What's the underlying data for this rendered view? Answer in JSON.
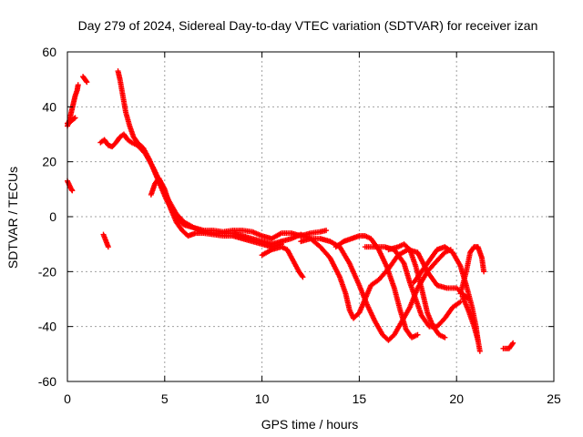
{
  "chart_data": {
    "type": "scatter",
    "title": "Day 279 of 2024, Sidereal Day-to-day VTEC variation (SDTVAR) for receiver izan",
    "xlabel": "GPS time / hours",
    "ylabel": "SDTVAR / TECUs",
    "xlim": [
      0,
      25
    ],
    "ylim": [
      -60,
      60
    ],
    "xticks": [
      0,
      5,
      10,
      15,
      20,
      25
    ],
    "yticks": [
      -60,
      -40,
      -20,
      0,
      20,
      40,
      60
    ],
    "grid": true,
    "marker": "+",
    "color": "#ff0000",
    "series": [
      {
        "name": "start-rise",
        "points": [
          [
            0.0,
            33
          ],
          [
            0.1,
            35
          ],
          [
            0.2,
            38
          ],
          [
            0.3,
            41
          ],
          [
            0.4,
            44
          ],
          [
            0.5,
            46
          ],
          [
            0.55,
            48
          ]
        ]
      },
      {
        "name": "start-low",
        "points": [
          [
            0.0,
            34
          ],
          [
            0.15,
            34.5
          ],
          [
            0.3,
            35.5
          ],
          [
            0.4,
            36
          ]
        ]
      },
      {
        "name": "early-dip",
        "points": [
          [
            0.0,
            13
          ],
          [
            0.1,
            11.5
          ],
          [
            0.2,
            10
          ],
          [
            0.25,
            9.5
          ]
        ]
      },
      {
        "name": "hour1",
        "points": [
          [
            0.8,
            51
          ],
          [
            0.9,
            50
          ],
          [
            1.0,
            49
          ]
        ]
      },
      {
        "name": "isolated",
        "points": [
          [
            1.85,
            -6.5
          ],
          [
            2.1,
            -11
          ]
        ]
      },
      {
        "name": "low-band",
        "points": [
          [
            1.7,
            27
          ],
          [
            1.9,
            28
          ],
          [
            2.1,
            26
          ],
          [
            2.3,
            25.5
          ],
          [
            2.5,
            27
          ],
          [
            2.7,
            29
          ],
          [
            2.9,
            30
          ],
          [
            3.1,
            28
          ],
          [
            3.3,
            27
          ],
          [
            3.6,
            26
          ],
          [
            4.0,
            23
          ],
          [
            4.4,
            18
          ],
          [
            4.8,
            12
          ],
          [
            5.2,
            6
          ],
          [
            5.6,
            1
          ],
          [
            6.0,
            -2
          ],
          [
            6.5,
            -4
          ],
          [
            7.0,
            -5.5
          ],
          [
            7.5,
            -6
          ],
          [
            8.0,
            -6
          ],
          [
            8.5,
            -6
          ],
          [
            9.0,
            -7
          ],
          [
            9.5,
            -8
          ],
          [
            10.0,
            -9
          ],
          [
            10.5,
            -10
          ],
          [
            11.0,
            -9
          ]
        ]
      },
      {
        "name": "upper-band",
        "points": [
          [
            2.6,
            53
          ],
          [
            2.7,
            50
          ],
          [
            2.8,
            46
          ],
          [
            2.9,
            42
          ],
          [
            3.0,
            38
          ],
          [
            3.2,
            33
          ],
          [
            3.4,
            29
          ],
          [
            3.6,
            27
          ],
          [
            3.9,
            25
          ],
          [
            4.2,
            21
          ],
          [
            4.5,
            16
          ],
          [
            4.8,
            11
          ],
          [
            5.1,
            6
          ],
          [
            5.4,
            2
          ],
          [
            5.7,
            -1
          ],
          [
            6.0,
            -3
          ],
          [
            6.5,
            -4
          ],
          [
            7.0,
            -5
          ],
          [
            7.5,
            -5
          ],
          [
            8.0,
            -5.5
          ],
          [
            8.5,
            -5
          ],
          [
            9.0,
            -5
          ],
          [
            9.5,
            -5.5
          ],
          [
            10.0,
            -7
          ],
          [
            10.5,
            -8
          ],
          [
            11.0,
            -6
          ],
          [
            11.5,
            -6
          ],
          [
            12.0,
            -7
          ],
          [
            12.5,
            -6
          ],
          [
            13.0,
            -5.5
          ],
          [
            13.3,
            -5
          ]
        ]
      },
      {
        "name": "lower-band",
        "points": [
          [
            4.3,
            8
          ],
          [
            4.5,
            12
          ],
          [
            4.7,
            14
          ],
          [
            5.0,
            10
          ],
          [
            5.3,
            3
          ],
          [
            5.6,
            -2
          ],
          [
            5.9,
            -5
          ],
          [
            6.2,
            -7
          ],
          [
            6.6,
            -6
          ],
          [
            7.0,
            -6
          ],
          [
            7.5,
            -6.5
          ],
          [
            8.0,
            -7
          ],
          [
            8.5,
            -7
          ],
          [
            9.0,
            -8
          ],
          [
            9.5,
            -9
          ],
          [
            10.0,
            -10
          ],
          [
            10.5,
            -11
          ],
          [
            11.0,
            -10
          ]
        ]
      },
      {
        "name": "arc-a",
        "points": [
          [
            10.0,
            -14
          ],
          [
            10.5,
            -12
          ],
          [
            11.0,
            -11
          ],
          [
            11.3,
            -12
          ],
          [
            11.6,
            -16
          ],
          [
            11.9,
            -20
          ],
          [
            12.1,
            -22
          ]
        ]
      },
      {
        "name": "arc-b",
        "points": [
          [
            11.0,
            -9
          ],
          [
            11.5,
            -8
          ],
          [
            12.0,
            -6.5
          ],
          [
            12.5,
            -8
          ],
          [
            13.0,
            -11
          ],
          [
            13.5,
            -15
          ],
          [
            14.0,
            -22
          ],
          [
            14.3,
            -28
          ],
          [
            14.5,
            -34
          ],
          [
            14.7,
            -37
          ],
          [
            15.0,
            -35
          ],
          [
            15.3,
            -30
          ],
          [
            15.6,
            -25
          ],
          [
            16.0,
            -23
          ],
          [
            16.5,
            -19
          ],
          [
            17.0,
            -14
          ],
          [
            17.5,
            -12
          ],
          [
            18.0,
            -13
          ],
          [
            18.5,
            -20
          ],
          [
            19.0,
            -25
          ],
          [
            19.5,
            -26
          ],
          [
            20.0,
            -26
          ],
          [
            20.3,
            -28
          ],
          [
            20.6,
            -30
          ]
        ]
      },
      {
        "name": "arc-c",
        "points": [
          [
            12.0,
            -9
          ],
          [
            12.5,
            -8
          ],
          [
            13.0,
            -8
          ],
          [
            13.5,
            -9
          ],
          [
            14.0,
            -11
          ],
          [
            14.5,
            -17
          ],
          [
            15.0,
            -25
          ],
          [
            15.4,
            -32
          ],
          [
            15.8,
            -38
          ],
          [
            16.2,
            -43
          ],
          [
            16.5,
            -45
          ],
          [
            16.8,
            -43
          ],
          [
            17.2,
            -38
          ],
          [
            17.6,
            -33
          ],
          [
            18.0,
            -26
          ],
          [
            18.5,
            -20
          ],
          [
            19.0,
            -16
          ],
          [
            19.4,
            -13
          ],
          [
            19.7,
            -12
          ]
        ]
      },
      {
        "name": "arc-d",
        "points": [
          [
            13.8,
            -11
          ],
          [
            14.2,
            -9
          ],
          [
            14.6,
            -8
          ],
          [
            15.0,
            -7
          ],
          [
            15.3,
            -7
          ],
          [
            15.6,
            -8
          ],
          [
            16.0,
            -12
          ],
          [
            16.4,
            -18
          ],
          [
            16.8,
            -26
          ],
          [
            17.1,
            -34
          ],
          [
            17.4,
            -41
          ],
          [
            17.7,
            -44
          ],
          [
            18.0,
            -43
          ]
        ]
      },
      {
        "name": "arc-e",
        "points": [
          [
            15.3,
            -11
          ],
          [
            15.8,
            -11
          ],
          [
            16.3,
            -11
          ],
          [
            16.8,
            -12
          ],
          [
            17.3,
            -17
          ],
          [
            17.6,
            -24
          ],
          [
            17.9,
            -30
          ],
          [
            18.2,
            -36
          ],
          [
            18.6,
            -40
          ],
          [
            19.0,
            -40
          ],
          [
            19.4,
            -37
          ],
          [
            19.8,
            -33
          ],
          [
            20.2,
            -31
          ]
        ]
      },
      {
        "name": "arc-f",
        "points": [
          [
            16.5,
            -12
          ],
          [
            17.0,
            -11
          ],
          [
            17.3,
            -10
          ],
          [
            17.6,
            -12
          ],
          [
            17.9,
            -18
          ],
          [
            18.2,
            -26
          ],
          [
            18.5,
            -35
          ],
          [
            18.8,
            -40
          ],
          [
            19.1,
            -43
          ],
          [
            19.4,
            -44
          ]
        ]
      },
      {
        "name": "arc-g",
        "points": [
          [
            17.8,
            -24
          ],
          [
            18.2,
            -20
          ],
          [
            18.6,
            -16
          ],
          [
            19.0,
            -12
          ],
          [
            19.4,
            -11
          ],
          [
            19.8,
            -13
          ],
          [
            20.2,
            -18
          ],
          [
            20.5,
            -25
          ],
          [
            20.8,
            -33
          ],
          [
            21.0,
            -40
          ],
          [
            21.1,
            -45
          ]
        ]
      },
      {
        "name": "arc-h",
        "points": [
          [
            20.2,
            -28
          ],
          [
            20.5,
            -20
          ],
          [
            20.7,
            -13
          ],
          [
            20.9,
            -11
          ],
          [
            21.1,
            -11
          ],
          [
            21.3,
            -15
          ],
          [
            21.4,
            -20
          ]
        ]
      },
      {
        "name": "arc-i",
        "points": [
          [
            20.3,
            -29
          ],
          [
            20.6,
            -34
          ],
          [
            20.9,
            -40
          ],
          [
            21.1,
            -45
          ],
          [
            21.2,
            -49
          ]
        ]
      },
      {
        "name": "tail",
        "points": [
          [
            22.4,
            -48
          ],
          [
            22.7,
            -48
          ],
          [
            22.9,
            -46
          ]
        ]
      }
    ]
  }
}
